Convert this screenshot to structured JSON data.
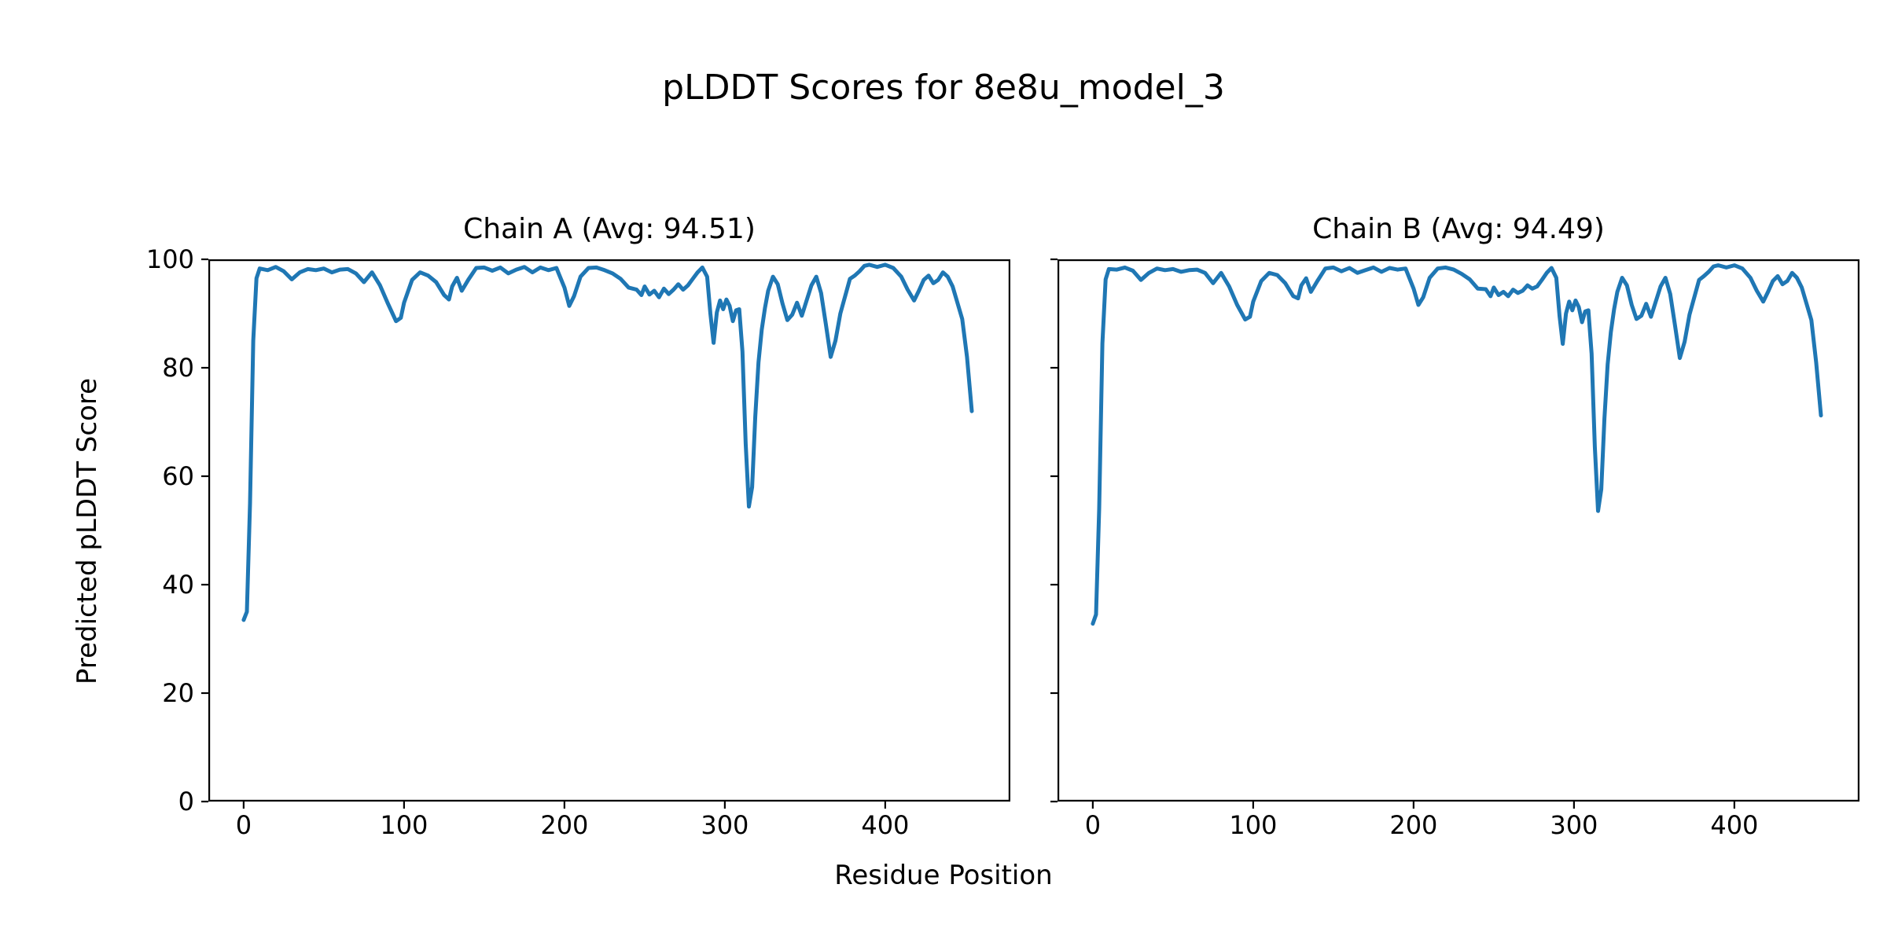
{
  "figure": {
    "title": "pLDDT Scores for 8e8u_model_3",
    "xlabel": "Residue Position",
    "ylabel": "Predicted pLDDT Score",
    "background": "#ffffff",
    "line_color": "#1f77b4",
    "spine_color": "#000000"
  },
  "chart_data": [
    {
      "type": "line",
      "title": "Chain A (Avg: 94.51)",
      "avg": 94.51,
      "legend_position": "none",
      "grid": false,
      "xlim": [
        -22,
        478
      ],
      "ylim": [
        0,
        100
      ],
      "xticks": [
        0,
        100,
        200,
        300,
        400
      ],
      "yticks": [
        0,
        20,
        40,
        60,
        80,
        100
      ],
      "show_ytick_labels": true,
      "x": [
        0,
        2,
        4,
        6,
        8,
        10,
        15,
        20,
        25,
        30,
        35,
        40,
        45,
        50,
        55,
        60,
        65,
        70,
        75,
        80,
        85,
        90,
        95,
        98,
        100,
        105,
        110,
        115,
        120,
        125,
        128,
        130,
        133,
        136,
        140,
        145,
        150,
        155,
        160,
        165,
        170,
        175,
        180,
        185,
        190,
        195,
        200,
        203,
        206,
        210,
        215,
        220,
        225,
        230,
        235,
        240,
        245,
        248,
        250,
        253,
        256,
        259,
        262,
        265,
        268,
        271,
        274,
        277,
        280,
        283,
        286,
        289,
        291,
        293,
        295,
        297,
        299,
        301,
        303,
        305,
        307,
        309,
        311,
        313,
        315,
        317,
        319,
        321,
        323,
        325,
        327,
        330,
        333,
        336,
        339,
        342,
        345,
        348,
        351,
        354,
        357,
        360,
        363,
        366,
        369,
        372,
        375,
        378,
        381,
        384,
        387,
        390,
        395,
        400,
        405,
        410,
        414,
        418,
        421,
        424,
        427,
        430,
        433,
        436,
        439,
        442,
        445,
        448,
        451,
        454
      ],
      "y": [
        33.5,
        35,
        55,
        85,
        96.5,
        98.3,
        98,
        98.6,
        97.8,
        96.3,
        97.6,
        98.2,
        98,
        98.3,
        97.6,
        98.1,
        98.2,
        97.4,
        95.8,
        97.6,
        95.2,
        91.8,
        88.6,
        89.2,
        92,
        96.2,
        97.6,
        97,
        95.8,
        93.4,
        92.6,
        95,
        96.6,
        94.2,
        96.2,
        98.4,
        98.5,
        97.9,
        98.5,
        97.4,
        98.1,
        98.6,
        97.6,
        98.5,
        98,
        98.4,
        94.8,
        91.4,
        93.2,
        96.8,
        98.4,
        98.5,
        98,
        97.4,
        96.4,
        94.8,
        94.4,
        93.4,
        95,
        93.5,
        94.2,
        93,
        94.6,
        93.6,
        94.4,
        95.4,
        94.4,
        95.2,
        96.4,
        97.6,
        98.5,
        96.8,
        90,
        84.6,
        90.2,
        92.4,
        90.8,
        92.6,
        91.4,
        88.6,
        90.6,
        90.8,
        83,
        66,
        54.4,
        58,
        71,
        81,
        87,
        91,
        94.2,
        96.8,
        95.4,
        91.8,
        88.8,
        89.8,
        92,
        89.6,
        92.4,
        95.2,
        96.8,
        93.8,
        88,
        82,
        85,
        90,
        93.2,
        96.4,
        97,
        97.8,
        98.8,
        99,
        98.6,
        99,
        98.4,
        96.8,
        94.4,
        92.4,
        94.2,
        96.2,
        97,
        95.6,
        96.2,
        97.6,
        96.8,
        95,
        92,
        89,
        82,
        72
      ]
    },
    {
      "type": "line",
      "title": "Chain B (Avg: 94.49)",
      "avg": 94.49,
      "legend_position": "none",
      "grid": false,
      "xlim": [
        -22,
        478
      ],
      "ylim": [
        0,
        100
      ],
      "xticks": [
        0,
        100,
        200,
        300,
        400
      ],
      "yticks": [
        0,
        20,
        40,
        60,
        80,
        100
      ],
      "show_ytick_labels": false,
      "x": [
        0,
        2,
        4,
        6,
        8,
        10,
        15,
        20,
        25,
        30,
        35,
        40,
        45,
        50,
        55,
        60,
        65,
        70,
        75,
        80,
        85,
        90,
        95,
        98,
        100,
        105,
        110,
        115,
        120,
        125,
        128,
        130,
        133,
        136,
        140,
        145,
        150,
        155,
        160,
        165,
        170,
        175,
        180,
        185,
        190,
        195,
        200,
        203,
        206,
        210,
        215,
        220,
        225,
        230,
        235,
        240,
        245,
        248,
        250,
        253,
        256,
        259,
        262,
        265,
        268,
        271,
        274,
        277,
        280,
        283,
        286,
        289,
        291,
        293,
        295,
        297,
        299,
        301,
        303,
        305,
        307,
        309,
        311,
        313,
        315,
        317,
        319,
        321,
        323,
        325,
        327,
        330,
        333,
        336,
        339,
        342,
        345,
        348,
        351,
        354,
        357,
        360,
        363,
        366,
        369,
        372,
        375,
        378,
        381,
        384,
        387,
        390,
        395,
        400,
        405,
        410,
        414,
        418,
        421,
        424,
        427,
        430,
        433,
        436,
        439,
        442,
        445,
        448,
        451,
        454
      ],
      "y": [
        32.8,
        34.5,
        54,
        84.5,
        96.3,
        98.2,
        98.1,
        98.5,
        97.9,
        96.2,
        97.5,
        98.3,
        98,
        98.2,
        97.7,
        98,
        98.1,
        97.5,
        95.6,
        97.5,
        95,
        91.6,
        88.9,
        89.4,
        92.2,
        96,
        97.5,
        97.1,
        95.6,
        93.2,
        92.8,
        95.2,
        96.5,
        94,
        96,
        98.3,
        98.5,
        97.8,
        98.4,
        97.5,
        98,
        98.5,
        97.7,
        98.4,
        98.1,
        98.3,
        94.6,
        91.6,
        93,
        96.6,
        98.3,
        98.5,
        98.1,
        97.3,
        96.3,
        94.6,
        94.5,
        93.2,
        94.8,
        93.4,
        94,
        93.2,
        94.4,
        93.8,
        94.2,
        95.2,
        94.6,
        95,
        96.2,
        97.5,
        98.4,
        96.6,
        89.6,
        84.4,
        90,
        92.2,
        90.6,
        92.4,
        91.2,
        88.4,
        90.4,
        90.6,
        82.6,
        65.4,
        53.6,
        57.6,
        70.6,
        80.6,
        86.6,
        90.8,
        94,
        96.6,
        95.2,
        91.6,
        89,
        89.6,
        91.8,
        89.4,
        92.2,
        95,
        96.6,
        93.6,
        87.8,
        81.8,
        84.8,
        89.8,
        93,
        96.2,
        96.9,
        97.7,
        98.7,
        98.9,
        98.5,
        98.9,
        98.3,
        96.6,
        94.2,
        92.2,
        94,
        96,
        96.9,
        95.4,
        96,
        97.5,
        96.6,
        94.8,
        91.8,
        88.8,
        81,
        71.2
      ]
    }
  ]
}
